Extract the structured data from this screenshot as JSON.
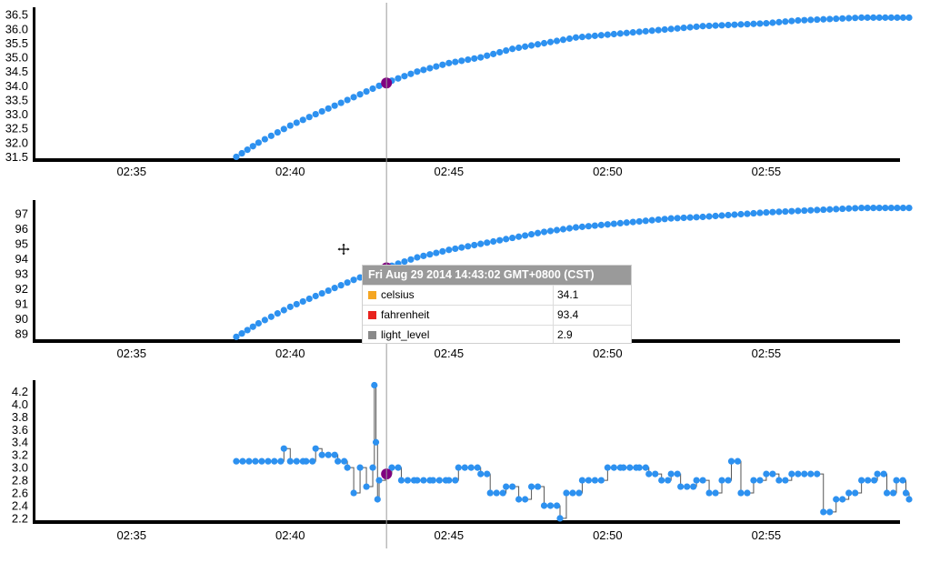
{
  "colors": {
    "series": "#2d91f0",
    "highlight": "#800080",
    "rule": "#999999",
    "axis": "#000000"
  },
  "cursor_icon": "move-cursor-icon",
  "tooltip": {
    "title": "Fri Aug 29 2014 14:43:02 GMT+0800 (CST)",
    "rows": [
      {
        "name": "celsius",
        "value": "34.1",
        "color": "#f5a623"
      },
      {
        "name": "fahrenheit",
        "value": "93.4",
        "color": "#e8231e"
      },
      {
        "name": "light_level",
        "value": "2.9",
        "color": "#8a8a8a"
      }
    ]
  },
  "chart_data": [
    {
      "type": "scatter",
      "x_unit": "time (mm:ss of hour 14)",
      "xlim": [
        "02:32",
        "02:59.5"
      ],
      "x_ticks": [
        "02:35",
        "02:40",
        "02:45",
        "02:50",
        "02:55"
      ],
      "ylim": [
        31.45,
        36.7
      ],
      "y_ticks": [
        "31.5",
        "32.0",
        "32.5",
        "33.0",
        "33.5",
        "34.0",
        "34.5",
        "35.0",
        "35.5",
        "36.0",
        "36.5"
      ],
      "highlight": {
        "x": "02:43:02",
        "y": 34.1
      },
      "series": [
        {
          "x_start_min": 38.3,
          "x_end_min": 59.5,
          "points": [
            [
              38.3,
              31.5
            ],
            [
              39.0,
              32.0
            ],
            [
              40.0,
              32.6
            ],
            [
              41.0,
              33.1
            ],
            [
              42.0,
              33.6
            ],
            [
              43.0,
              34.1
            ],
            [
              44.0,
              34.5
            ],
            [
              45.0,
              34.8
            ],
            [
              46.0,
              35.0
            ],
            [
              47.0,
              35.3
            ],
            [
              48.0,
              35.5
            ],
            [
              49.0,
              35.7
            ],
            [
              50.0,
              35.8
            ],
            [
              51.0,
              35.9
            ],
            [
              52.0,
              36.0
            ],
            [
              53.0,
              36.1
            ],
            [
              54.0,
              36.15
            ],
            [
              55.0,
              36.2
            ],
            [
              56.0,
              36.3
            ],
            [
              57.0,
              36.35
            ],
            [
              58.0,
              36.4
            ],
            [
              59.5,
              36.4
            ]
          ]
        }
      ]
    },
    {
      "type": "scatter",
      "x_unit": "time (mm:ss of hour 14)",
      "xlim": [
        "02:32",
        "02:59.5"
      ],
      "x_ticks": [
        "02:35",
        "02:40",
        "02:45",
        "02:50",
        "02:55"
      ],
      "ylim": [
        88.7,
        97.8
      ],
      "y_ticks": [
        "89",
        "90",
        "91",
        "92",
        "93",
        "94",
        "95",
        "96",
        "97"
      ],
      "highlight": {
        "x": "02:43:02",
        "y": 93.4
      },
      "series": [
        {
          "x_start_min": 38.3,
          "x_end_min": 59.5,
          "points": [
            [
              38.3,
              88.8
            ],
            [
              39.0,
              89.7
            ],
            [
              40.0,
              90.8
            ],
            [
              41.0,
              91.7
            ],
            [
              42.0,
              92.6
            ],
            [
              43.0,
              93.4
            ],
            [
              44.0,
              94.1
            ],
            [
              45.0,
              94.6
            ],
            [
              46.0,
              95.0
            ],
            [
              47.0,
              95.4
            ],
            [
              48.0,
              95.8
            ],
            [
              49.0,
              96.1
            ],
            [
              50.0,
              96.3
            ],
            [
              51.0,
              96.5
            ],
            [
              52.0,
              96.7
            ],
            [
              53.0,
              96.8
            ],
            [
              54.0,
              96.95
            ],
            [
              55.0,
              97.1
            ],
            [
              56.0,
              97.2
            ],
            [
              57.0,
              97.3
            ],
            [
              58.0,
              97.4
            ],
            [
              59.5,
              97.4
            ]
          ]
        }
      ]
    },
    {
      "type": "line",
      "x_unit": "time (mm:ss of hour 14)",
      "xlim": [
        "02:32",
        "02:59.5"
      ],
      "x_ticks": [
        "02:35",
        "02:40",
        "02:45",
        "02:50",
        "02:55"
      ],
      "ylim": [
        2.17,
        4.35
      ],
      "y_ticks": [
        "2.2",
        "2.4",
        "2.6",
        "2.8",
        "3.0",
        "3.2",
        "3.4",
        "3.6",
        "3.8",
        "4.0",
        "4.2"
      ],
      "highlight": {
        "x": "02:43:02",
        "y": 2.9
      },
      "series": [
        {
          "step": true,
          "points": [
            [
              38.3,
              3.1
            ],
            [
              39.5,
              3.1
            ],
            [
              39.8,
              3.3
            ],
            [
              40.0,
              3.1
            ],
            [
              40.5,
              3.1
            ],
            [
              40.8,
              3.3
            ],
            [
              41.0,
              3.2
            ],
            [
              41.5,
              3.1
            ],
            [
              41.8,
              3.0
            ],
            [
              42.0,
              2.6
            ],
            [
              42.2,
              3.0
            ],
            [
              42.4,
              2.7
            ],
            [
              42.6,
              3.0
            ],
            [
              42.8,
              2.8
            ],
            [
              43.0,
              2.9
            ],
            [
              42.7,
              3.4
            ],
            [
              42.65,
              4.3
            ],
            [
              42.75,
              2.5
            ],
            [
              43.2,
              3.0
            ],
            [
              43.5,
              2.8
            ],
            [
              44.0,
              2.8
            ],
            [
              44.5,
              2.8
            ],
            [
              45.0,
              2.8
            ],
            [
              45.3,
              3.0
            ],
            [
              45.7,
              3.0
            ],
            [
              46.0,
              2.9
            ],
            [
              46.3,
              2.6
            ],
            [
              46.8,
              2.7
            ],
            [
              47.2,
              2.5
            ],
            [
              47.6,
              2.7
            ],
            [
              48.0,
              2.4
            ],
            [
              48.5,
              2.2
            ],
            [
              48.7,
              2.6
            ],
            [
              49.2,
              2.8
            ],
            [
              49.8,
              2.8
            ],
            [
              50.0,
              3.0
            ],
            [
              50.5,
              3.0
            ],
            [
              51.0,
              3.0
            ],
            [
              51.3,
              2.9
            ],
            [
              51.7,
              2.8
            ],
            [
              52.0,
              2.9
            ],
            [
              52.3,
              2.7
            ],
            [
              52.8,
              2.8
            ],
            [
              53.2,
              2.6
            ],
            [
              53.6,
              2.8
            ],
            [
              53.9,
              3.1
            ],
            [
              54.2,
              2.6
            ],
            [
              54.6,
              2.8
            ],
            [
              55.0,
              2.9
            ],
            [
              55.4,
              2.8
            ],
            [
              55.8,
              2.9
            ],
            [
              56.2,
              2.9
            ],
            [
              56.6,
              2.9
            ],
            [
              56.8,
              2.3
            ],
            [
              57.2,
              2.5
            ],
            [
              57.6,
              2.6
            ],
            [
              58.0,
              2.8
            ],
            [
              58.5,
              2.9
            ],
            [
              58.8,
              2.6
            ],
            [
              59.1,
              2.8
            ],
            [
              59.4,
              2.6
            ],
            [
              59.5,
              2.5
            ]
          ]
        }
      ]
    }
  ]
}
